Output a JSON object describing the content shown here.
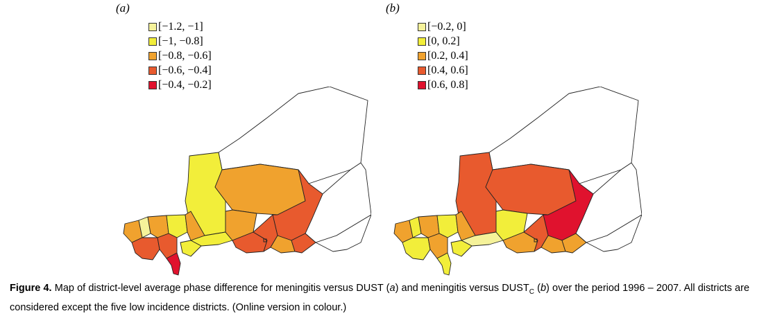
{
  "panels": [
    {
      "label": "(a)",
      "legend": [
        {
          "range": "[−1.2, −1]",
          "color": "#f5f29a"
        },
        {
          "range": "[−1, −0.8]",
          "color": "#f2ee3a"
        },
        {
          "range": "[−0.8, −0.6]",
          "color": "#f0a22e"
        },
        {
          "range": "[−0.6, −0.4]",
          "color": "#e85a2e"
        },
        {
          "range": "[−0.4, −0.2]",
          "color": "#e0122e"
        }
      ],
      "region_fill_index": {
        "north": -1,
        "east": -1,
        "southeast": -1,
        "central_north": 1,
        "central": 2,
        "east_central": 3,
        "sw_a": 2,
        "sw_b": 0,
        "sw_c": 2,
        "sw_d": 1,
        "sw_e": 2,
        "s_a": 3,
        "s_b": 3,
        "s_c": 4,
        "s_d": 1,
        "s_e": 2,
        "s_f": 3,
        "s_g": 3,
        "s_h": 2,
        "s_i": 3,
        "s_j": 1
      }
    },
    {
      "label": "(b)",
      "legend": [
        {
          "range": "[−0.2, 0]",
          "color": "#f5f29a"
        },
        {
          "range": "[0, 0.2]",
          "color": "#f2ee3a"
        },
        {
          "range": "[0.2, 0.4]",
          "color": "#f0a22e"
        },
        {
          "range": "[0.4, 0.6]",
          "color": "#e85a2e"
        },
        {
          "range": "[0.6, 0.8]",
          "color": "#e0122e"
        }
      ],
      "region_fill_index": {
        "north": -1,
        "east": -1,
        "southeast": -1,
        "central_north": 3,
        "central": 3,
        "east_central": 4,
        "sw_a": 2,
        "sw_b": 1,
        "sw_c": 2,
        "sw_d": 1,
        "sw_e": 2,
        "s_a": 1,
        "s_b": 2,
        "s_c": 1,
        "s_d": 0,
        "s_e": 1,
        "s_f": 2,
        "s_g": 3,
        "s_h": 2,
        "s_i": 2,
        "s_j": 1
      }
    }
  ],
  "caption": {
    "figure_label": "Figure 4.",
    "text_1": " Map of district-level average phase difference for meningitis versus DUST (",
    "italic_a": "a",
    "text_2": ") and meningitis versus DUST",
    "subscript": "C",
    "text_3": " (",
    "italic_b": "b",
    "text_4": ") over the period 1996 – 2007. All districts are considered except the five low incidence districts. (Online version in colour.)"
  }
}
